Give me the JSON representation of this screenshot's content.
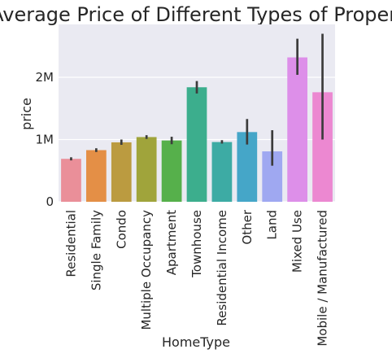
{
  "chart_data": {
    "type": "bar",
    "title": "Average Price of Different Types of Property",
    "xlabel": "HomeType",
    "ylabel": "price",
    "categories": [
      "Residential",
      "Single Family",
      "Condo",
      "Multiple Occupancy",
      "Apartment",
      "Townhouse",
      "Residential Income",
      "Other",
      "Land",
      "Mixed Use",
      "Mobile / Manufactured"
    ],
    "values": [
      690000,
      830000,
      955000,
      1040000,
      985000,
      1840000,
      960000,
      1120000,
      810000,
      2320000,
      1760000
    ],
    "error_bars": [
      [
        665000,
        715000
      ],
      [
        800000,
        860000
      ],
      [
        915000,
        1000000
      ],
      [
        1010000,
        1070000
      ],
      [
        925000,
        1045000
      ],
      [
        1740000,
        1940000
      ],
      [
        935000,
        990000
      ],
      [
        920000,
        1330000
      ],
      [
        580000,
        1150000
      ],
      [
        2040000,
        2620000
      ],
      [
        1000000,
        2700000
      ]
    ],
    "colors": [
      "#ea8f99",
      "#e48f46",
      "#bb9b40",
      "#a0a43b",
      "#56b04b",
      "#3cae8d",
      "#3daba4",
      "#45a6c8",
      "#9fa8f1",
      "#dd8fe9",
      "#ec88d1"
    ],
    "error_color": "#3c3c3c",
    "background": "#eaeaf2",
    "grid": true,
    "ylim": [
      0,
      2850000
    ],
    "yticks": [
      0,
      1000000,
      2000000
    ],
    "ytick_labels": [
      "0",
      "1M",
      "2M"
    ]
  }
}
